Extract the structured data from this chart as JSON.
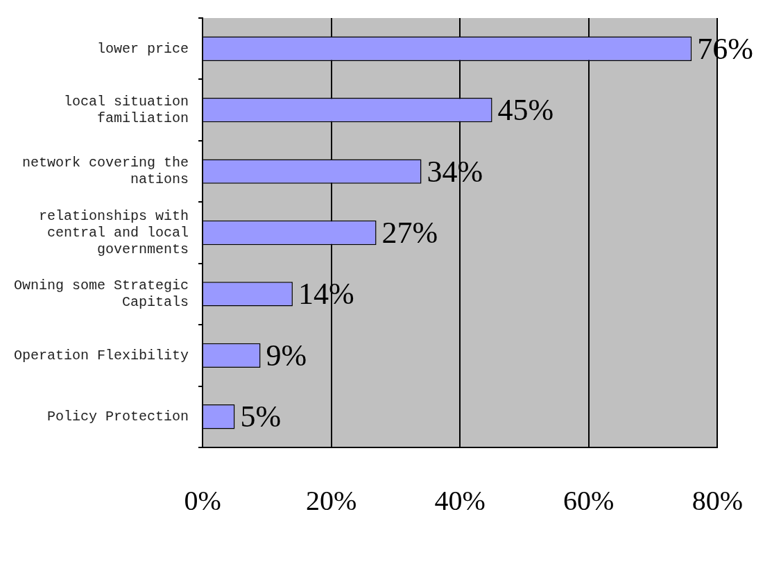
{
  "chart_data": {
    "type": "bar",
    "orientation": "horizontal",
    "categories": [
      "lower price",
      "local situation familiation",
      "network covering the nations",
      "relationships with central and local governments",
      "Owning some Strategic Capitals",
      "Operation Flexibility",
      "Policy Protection"
    ],
    "values": [
      76,
      45,
      34,
      27,
      14,
      9,
      5
    ],
    "value_labels": [
      "76%",
      "45%",
      "34%",
      "27%",
      "14%",
      "9%",
      "5%"
    ],
    "color": "#9999ff",
    "xlim": [
      0,
      80
    ],
    "xticks": [
      {
        "value": 0,
        "label": "0%"
      },
      {
        "value": 20,
        "label": "20%"
      },
      {
        "value": 40,
        "label": "40%"
      },
      {
        "value": 60,
        "label": "60%"
      },
      {
        "value": 80,
        "label": "80%"
      }
    ],
    "grid": "x",
    "legend": false
  }
}
